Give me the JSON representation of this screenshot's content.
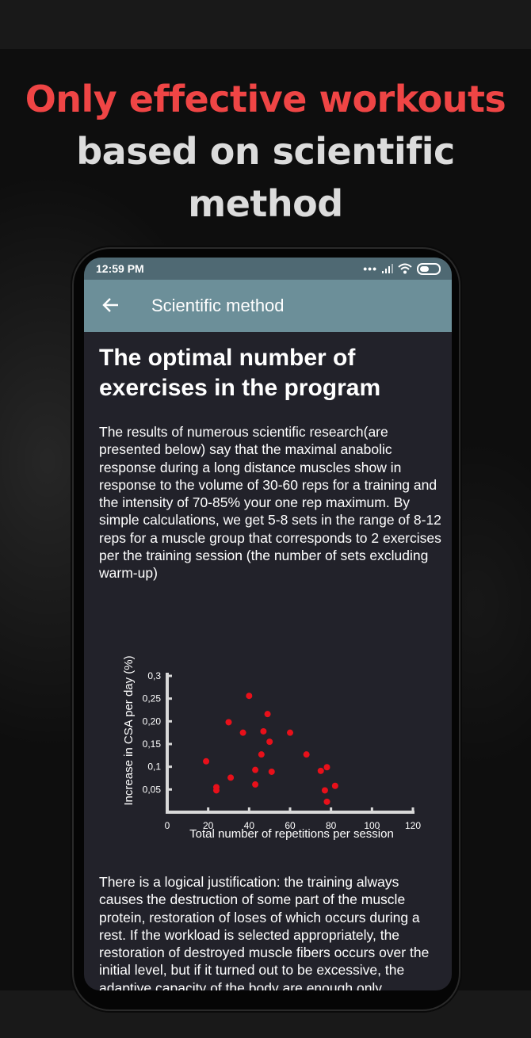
{
  "promo": {
    "headline_line1": "Only effective workouts",
    "headline_line2": "based on scientific",
    "headline_line3": "method"
  },
  "status_bar": {
    "time": "12:59 PM",
    "icons": [
      "more-dots-icon",
      "signal-icon",
      "wifi-icon",
      "battery-icon"
    ]
  },
  "app_bar": {
    "back_icon": "arrow-back-icon",
    "title": "Scientific method"
  },
  "article": {
    "heading": "The optimal number of exercises in the program",
    "paragraph1": "The results of numerous scientific research(are presented below) say that the maximal anabolic response during a long distance muscles show in response to the volume of 30-60 reps for a training and the intensity of 70-85% your one rep maximum. By simple calculations, we get 5-8 sets in the range of 8-12 reps for a muscle group that corresponds to 2 exercises per the training session (the number of sets excluding warm-up)",
    "paragraph2": "There is a logical justification: the training always causes the destruction of some part of the muscle protein, restoration of loses of which occurs during a rest. If the workload is selected appropriately, the restoration of destroyed muscle fibers occurs over the initial level, but if it turned out to be excessive, the adaptive capacity of the body are enough only"
  },
  "colors": {
    "headline_accent": "#ef4545",
    "app_bar": "#6c8f99",
    "status_bar": "#4f6973",
    "screen_bg": "#22222a",
    "point": "#e8101a",
    "axis": "#d9d9d9"
  },
  "chart_data": {
    "type": "scatter",
    "title": "",
    "xlabel": "Total number of repetitions per session",
    "ylabel": "Increase in CSA per day (%)",
    "xlim": [
      0,
      120
    ],
    "ylim": [
      0,
      0.3
    ],
    "x_ticks": [
      0,
      20,
      40,
      60,
      80,
      100,
      120
    ],
    "y_ticks": [
      0.05,
      0.1,
      0.15,
      0.2,
      0.25,
      0.3
    ],
    "x_tick_labels": [
      "0",
      "20",
      "40",
      "60",
      "80",
      "100",
      "120"
    ],
    "y_tick_labels": [
      "0,05",
      "0,1",
      "0,15",
      "0,20",
      "0,25",
      "0,3"
    ],
    "grid": false,
    "series": [
      {
        "color": "#e8101a",
        "points": [
          [
            19,
            0.112
          ],
          [
            24,
            0.055
          ],
          [
            24,
            0.048
          ],
          [
            30,
            0.198
          ],
          [
            31,
            0.076
          ],
          [
            37,
            0.175
          ],
          [
            40,
            0.256
          ],
          [
            43,
            0.093
          ],
          [
            43,
            0.061
          ],
          [
            46,
            0.127
          ],
          [
            47,
            0.178
          ],
          [
            49,
            0.216
          ],
          [
            50,
            0.155
          ],
          [
            51,
            0.089
          ],
          [
            60,
            0.175
          ],
          [
            68,
            0.127
          ],
          [
            75,
            0.091
          ],
          [
            77,
            0.048
          ],
          [
            78,
            0.099
          ],
          [
            78,
            0.023
          ],
          [
            82,
            0.058
          ]
        ]
      }
    ]
  }
}
